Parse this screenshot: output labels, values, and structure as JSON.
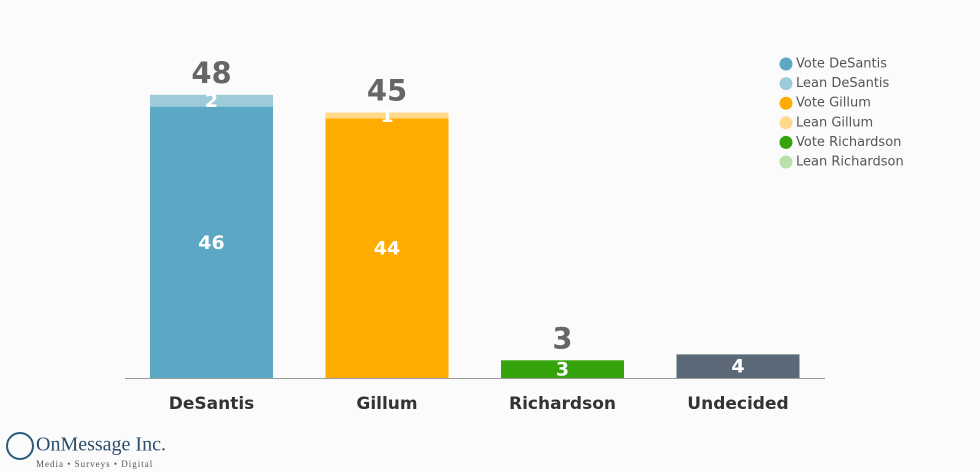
{
  "chart_data": {
    "type": "stacked-bar",
    "categories": [
      "DeSantis",
      "Gillum",
      "Richardson",
      "Undecided"
    ],
    "series": [
      {
        "name": "Vote DeSantis",
        "color": "#5aa8c3",
        "values": [
          46,
          null,
          null,
          null
        ]
      },
      {
        "name": "Lean DeSantis",
        "color": "#9dcbda",
        "values": [
          2,
          null,
          null,
          null
        ]
      },
      {
        "name": "Vote Gillum",
        "color": "#ffab00",
        "values": [
          null,
          44,
          null,
          null
        ]
      },
      {
        "name": "Lean Gillum",
        "color": "#ffd88a",
        "values": [
          null,
          1,
          null,
          null
        ]
      },
      {
        "name": "Vote Richardson",
        "color": "#35a30c",
        "values": [
          null,
          null,
          3,
          null
        ]
      },
      {
        "name": "Lean Richardson",
        "color": "#b8e0a8",
        "values": [
          null,
          null,
          null,
          null
        ]
      },
      {
        "color": "#5b6877",
        "values": [
          null,
          null,
          null,
          4
        ]
      }
    ],
    "totals": [
      48,
      45,
      3,
      null
    ]
  },
  "logo": {
    "name": "OnMessage Inc.",
    "tagline": "Media • Surveys • Digital"
  }
}
